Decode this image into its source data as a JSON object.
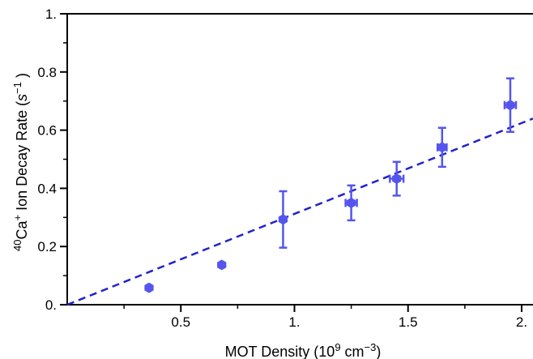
{
  "chart_data": {
    "type": "scatter",
    "xlabel": {
      "prefix": "MOT Density (10",
      "exp1": "9",
      "mid": " cm",
      "exp2": "−3",
      "suffix": ")"
    },
    "ylabel": {
      "sup_mass": "40",
      "species": "Ca",
      "sup_charge": "+",
      "text": " Ion Decay Rate (",
      "unit": "s",
      "unit_exp": "−1",
      "suffix": " )"
    },
    "xlim": [
      0,
      2.05
    ],
    "ylim": [
      0,
      1.0
    ],
    "x_ticks": [
      {
        "value": 0.5,
        "label": "0.5"
      },
      {
        "value": 1.0,
        "label": "1."
      },
      {
        "value": 1.5,
        "label": "1.5"
      },
      {
        "value": 2.0,
        "label": "2."
      }
    ],
    "x_minor_ticks": [
      0.25,
      0.75,
      1.25,
      1.75
    ],
    "y_ticks": [
      {
        "value": 0.0,
        "label": "0."
      },
      {
        "value": 0.2,
        "label": "0.2"
      },
      {
        "value": 0.4,
        "label": "0.4"
      },
      {
        "value": 0.6,
        "label": "0.6"
      },
      {
        "value": 0.8,
        "label": "0.8"
      },
      {
        "value": 1.0,
        "label": "1."
      }
    ],
    "y_minor_ticks": [
      0.1,
      0.3,
      0.5,
      0.7,
      0.9
    ],
    "grid": false,
    "marker_color": "#5555ee",
    "fit_color": "#2222cc",
    "points": [
      {
        "x": 0.36,
        "y": 0.058,
        "xerr": 0.0,
        "yerr": 0.0
      },
      {
        "x": 0.68,
        "y": 0.137,
        "xerr": 0.0,
        "yerr": 0.0
      },
      {
        "x": 0.95,
        "y": 0.293,
        "xerr": 0.0,
        "yerr": 0.097
      },
      {
        "x": 1.25,
        "y": 0.35,
        "xerr": 0.025,
        "yerr": 0.06
      },
      {
        "x": 1.45,
        "y": 0.433,
        "xerr": 0.03,
        "yerr": 0.058
      },
      {
        "x": 1.65,
        "y": 0.541,
        "xerr": 0.02,
        "yerr": 0.067
      },
      {
        "x": 1.95,
        "y": 0.686,
        "xerr": 0.025,
        "yerr": 0.092
      }
    ],
    "fit_line": {
      "style": "dashed",
      "x": [
        0.0,
        2.05
      ],
      "y": [
        0.0,
        0.64
      ]
    }
  }
}
